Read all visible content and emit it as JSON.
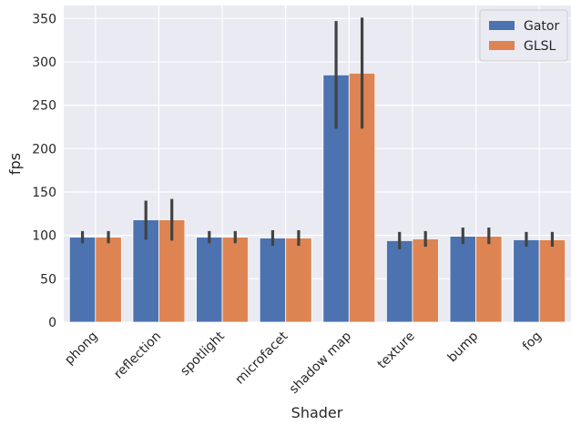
{
  "chart_data": {
    "type": "bar",
    "xlabel": "Shader",
    "ylabel": "fps",
    "ylim": [
      0,
      365
    ],
    "yticks": [
      0,
      50,
      100,
      150,
      200,
      250,
      300,
      350
    ],
    "categories": [
      "phong",
      "reflection",
      "spotlight",
      "microfacet",
      "shadow map",
      "texture",
      "bump",
      "fog"
    ],
    "series": [
      {
        "name": "Gator",
        "color": "#4c72b0",
        "values": [
          98,
          118,
          98,
          97,
          285,
          94,
          99,
          95
        ],
        "error_low": [
          91,
          95,
          91,
          88,
          223,
          84,
          90,
          87
        ],
        "error_high": [
          105,
          140,
          105,
          106,
          347,
          104,
          109,
          104
        ]
      },
      {
        "name": "GLSL",
        "color": "#dd8452",
        "values": [
          98,
          118,
          98,
          97,
          287,
          96,
          99,
          95
        ],
        "error_low": [
          91,
          94,
          91,
          88,
          223,
          87,
          90,
          87
        ],
        "error_high": [
          105,
          142,
          105,
          106,
          351,
          105,
          109,
          104
        ]
      }
    ],
    "legend_position": "top-right",
    "grid": true,
    "background": "#eaeaf2",
    "error_bar_color": "#424242"
  }
}
